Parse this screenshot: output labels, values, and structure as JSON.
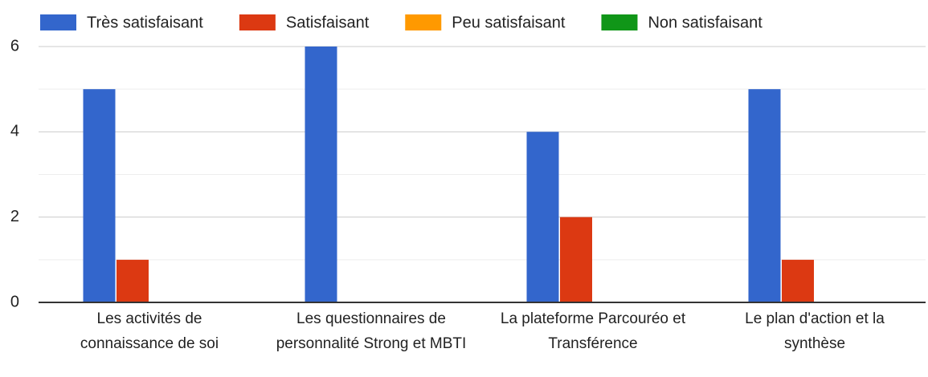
{
  "chart_data": {
    "type": "bar",
    "categories": [
      "Les activités de connaissance de soi",
      "Les questionnaires de personnalité Strong et MBTI",
      "La plateforme Parcouréo et Transférence",
      "Le plan d'action et la synthèse"
    ],
    "series": [
      {
        "name": "Très satisfaisant",
        "color": "#3366cc",
        "values": [
          5,
          6,
          4,
          5
        ]
      },
      {
        "name": "Satisfaisant",
        "color": "#dc3912",
        "values": [
          1,
          0,
          2,
          1
        ]
      },
      {
        "name": "Peu satisfaisant",
        "color": "#ff9900",
        "values": [
          0,
          0,
          0,
          0
        ]
      },
      {
        "name": "Non satisfaisant",
        "color": "#109618",
        "values": [
          0,
          0,
          0,
          0
        ]
      }
    ],
    "ylim": [
      0,
      6
    ],
    "yticks": [
      0,
      2,
      4,
      6
    ],
    "minor_yticks": [
      1,
      3,
      5
    ],
    "grid": true,
    "legend": "top"
  }
}
